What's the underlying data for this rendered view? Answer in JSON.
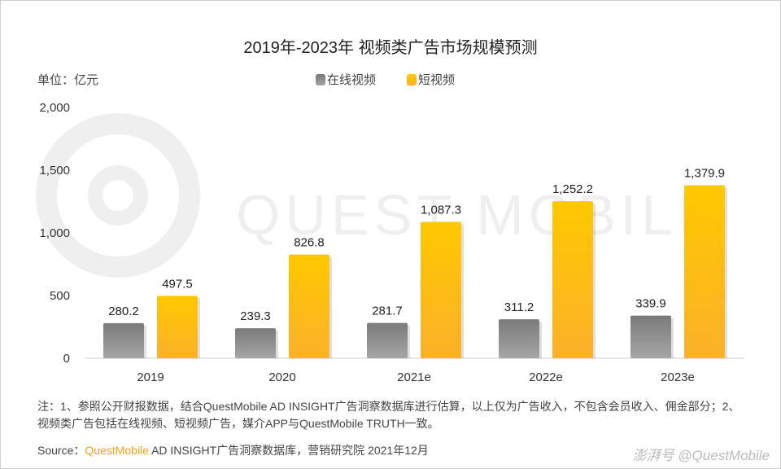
{
  "title": "2019年-2023年 视频类广告市场规模预测",
  "unit_label": "单位：亿元",
  "watermark": "QUEST MOBILE",
  "colors": {
    "online": "#888888",
    "short": "#ffc200"
  },
  "chart_data": {
    "type": "bar",
    "title": "2019年-2023年 视频类广告市场规模预测",
    "categories": [
      "2019",
      "2020",
      "2021e",
      "2022e",
      "2023e"
    ],
    "series": [
      {
        "name": "在线视频",
        "values": [
          280.2,
          239.3,
          281.7,
          311.2,
          339.9
        ],
        "labels": [
          "280.2",
          "239.3",
          "281.7",
          "311.2",
          "339.9"
        ]
      },
      {
        "name": "短视频",
        "values": [
          497.5,
          826.8,
          1087.3,
          1252.2,
          1379.9
        ],
        "labels": [
          "497.5",
          "826.8",
          "1,087.3",
          "1,252.2",
          "1,379.9"
        ]
      }
    ],
    "ylim": [
      0,
      2000
    ],
    "yticks": [
      0,
      500,
      1000,
      1500,
      2000
    ],
    "ytick_labels": [
      "0",
      "500",
      "1,000",
      "1,500",
      "2,000"
    ],
    "ylabel": "单位：亿元",
    "legend": "top-center",
    "grid": false
  },
  "note": "注：1、参照公开财报数据，结合QuestMobile AD INSIGHT广告洞察数据库进行估算，以上仅为广告收入，不包含会员收入、佣金部分；2、视频类广告包括在线视频、短视频广告，媒介APP与QuestMobile TRUTH一致。",
  "source": {
    "prefix": "Source：",
    "brand": "QuestMobile",
    "rest": " AD INSIGHT广告洞察数据库，营销研究院 2021年12月"
  },
  "credit": "澎湃号 @QuestMobile"
}
